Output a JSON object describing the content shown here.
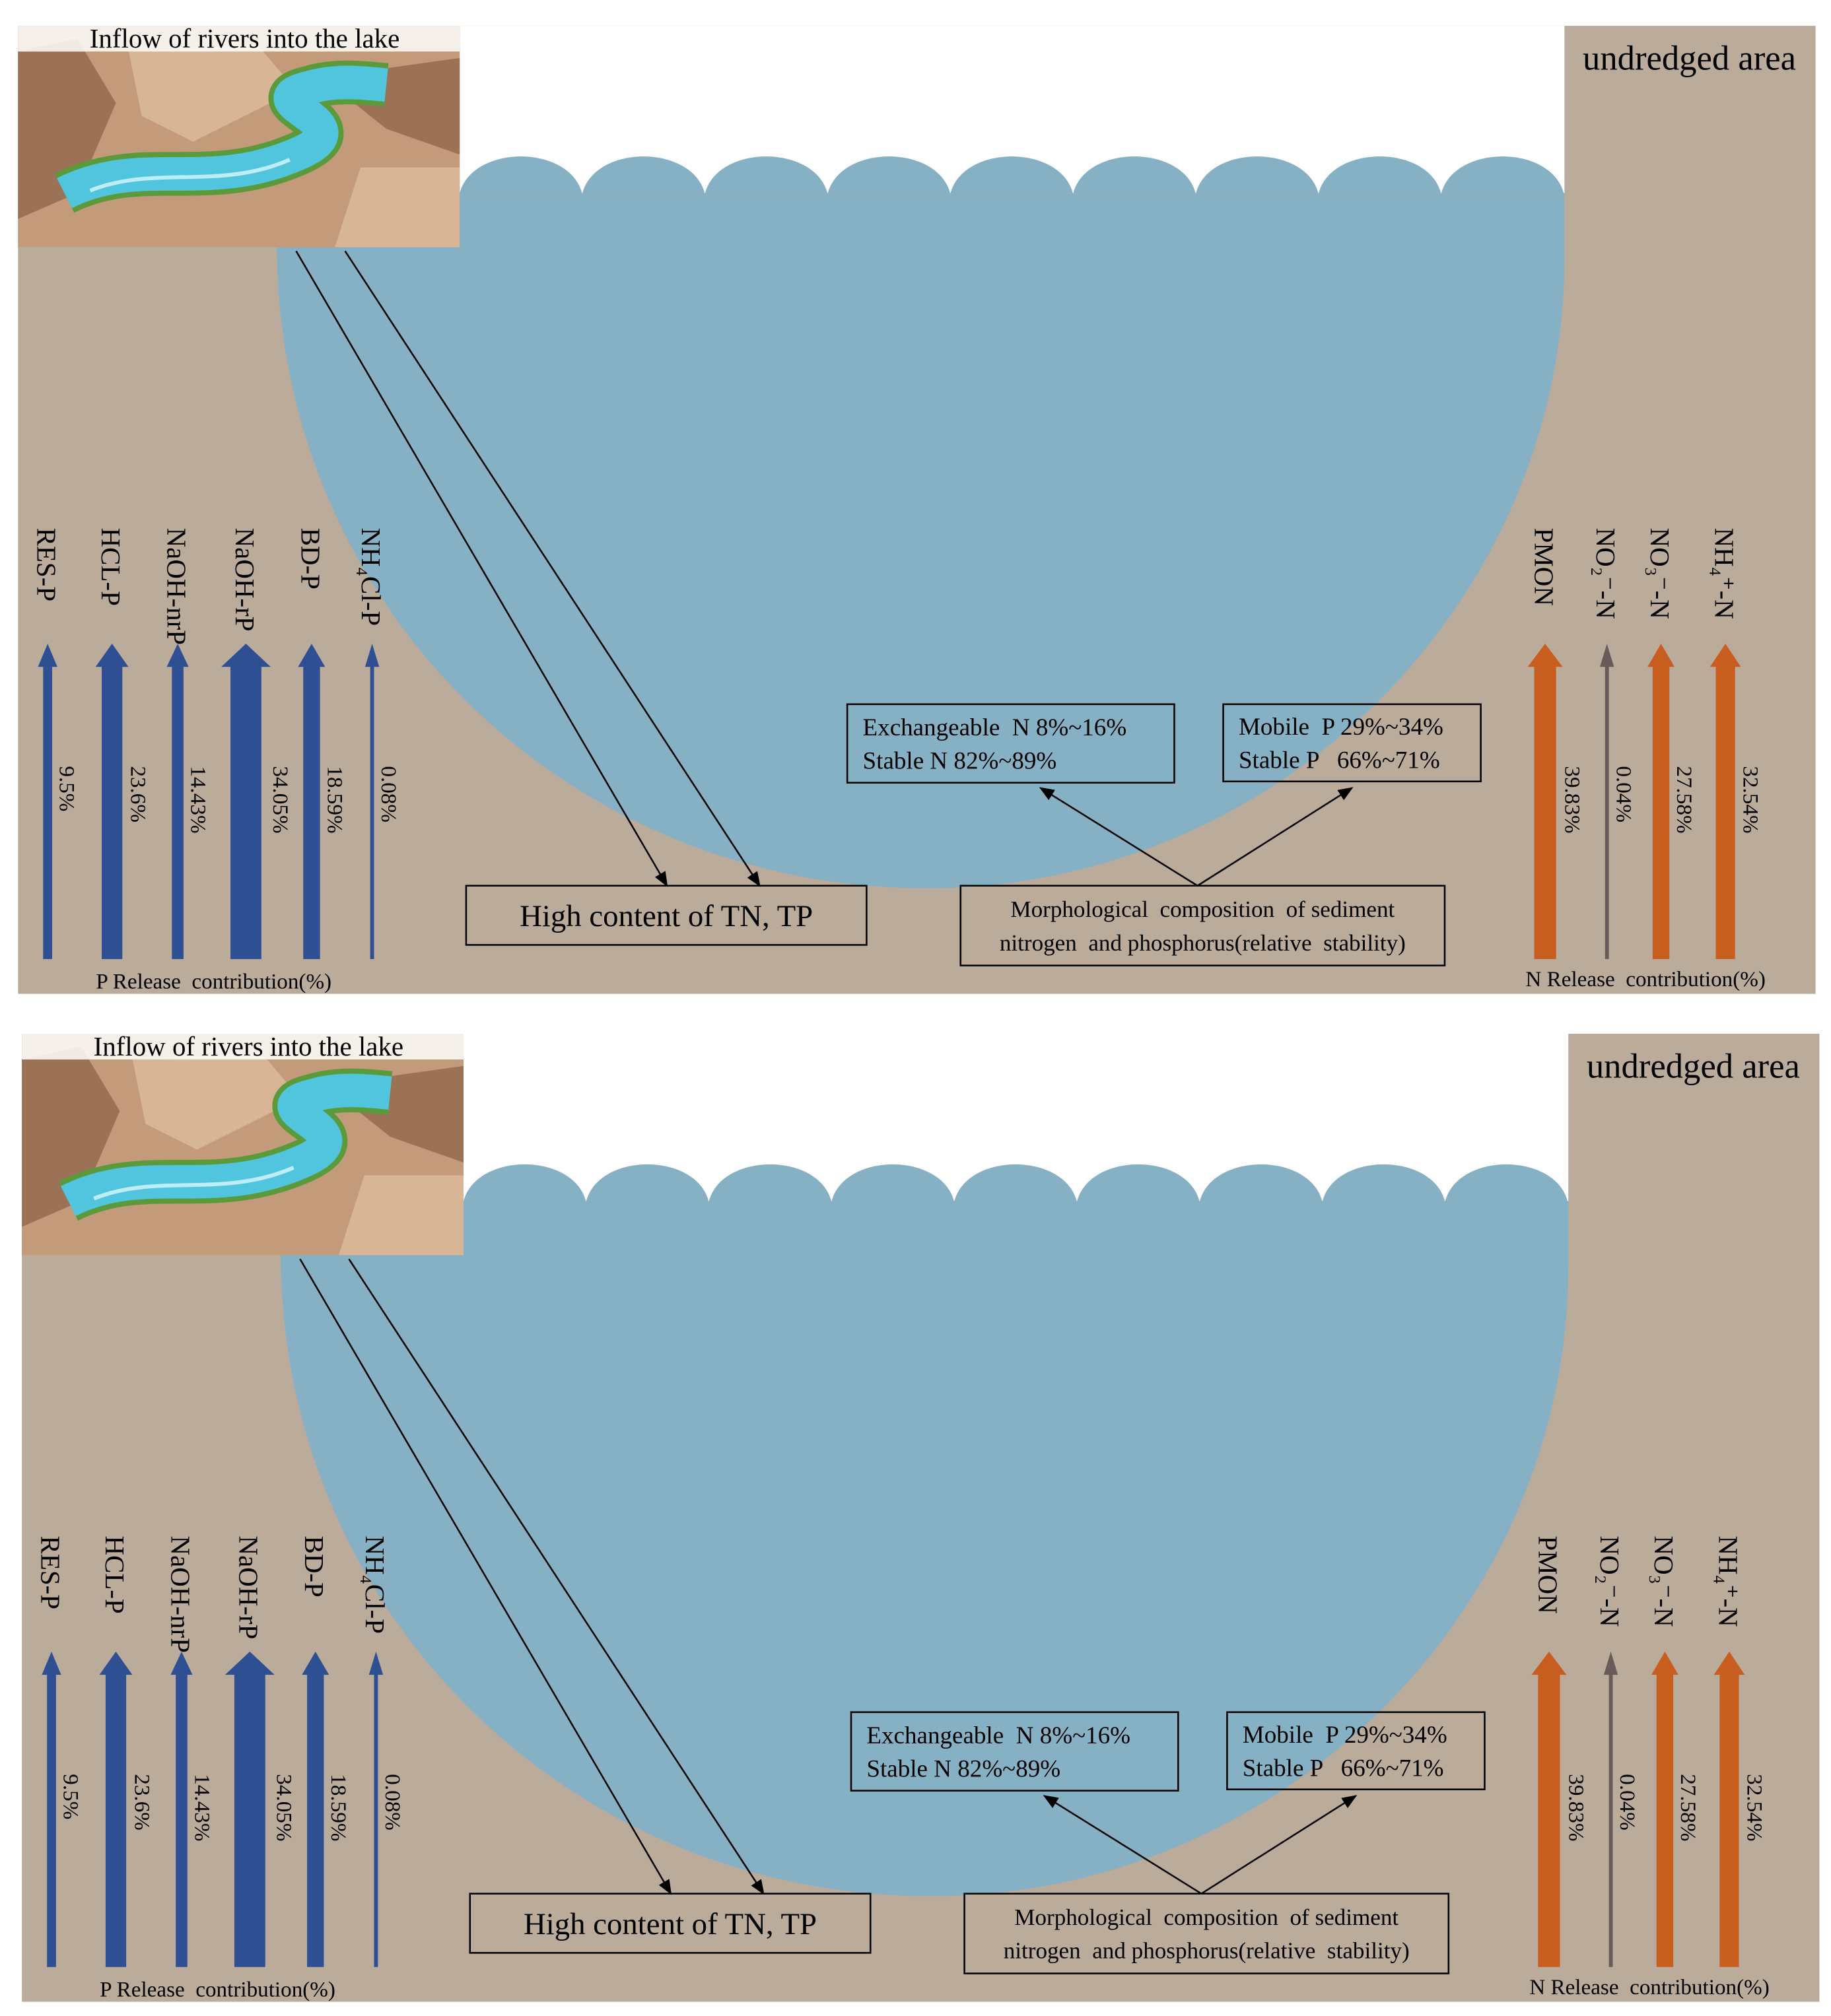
{
  "panels": [
    {
      "river_title": "Inflow of rivers into the lake",
      "area_label": "undredged area",
      "p_release": {
        "caption": "P Release  contribution(%)",
        "items": [
          {
            "name": "RES-P",
            "percent": "9.5%"
          },
          {
            "name": "HCL-P",
            "percent": "23.6%"
          },
          {
            "name": "NaOH-nrP",
            "percent": "14.43%"
          },
          {
            "name": "NaOH-rP",
            "percent": "34.05%"
          },
          {
            "name": "BD-P",
            "percent": "18.59%"
          },
          {
            "name": "NH₄Cl-P",
            "percent": "0.08%"
          }
        ]
      },
      "n_release": {
        "caption": "N Release  contribution(%)",
        "items": [
          {
            "name": "PMON",
            "percent": "39.83%"
          },
          {
            "name": "NO₂⁻-N",
            "percent": "0.04%"
          },
          {
            "name": "NO₃⁻-N",
            "percent": "27.58%"
          },
          {
            "name": "NH₄⁺-N",
            "percent": "32.54%"
          }
        ]
      },
      "tn_tp_box": "High content of TN, TP",
      "morphology_box": [
        "Morphological  composition  of sediment",
        "nitrogen  and phosphorus(relative  stability)"
      ],
      "n_box": [
        "Exchangeable  N 8%~16%",
        "Stable N 82%~89%"
      ],
      "p_box": [
        "Mobile  P 29%~34%",
        "Stable P   66%~71%"
      ]
    },
    {
      "river_title": "Inflow of rivers into the lake",
      "area_label": "undredged area",
      "p_release": {
        "caption": "P Release  contribution(%)",
        "items": [
          {
            "name": "RES-P",
            "percent": "9.5%"
          },
          {
            "name": "HCL-P",
            "percent": "23.6%"
          },
          {
            "name": "NaOH-nrP",
            "percent": "14.43%"
          },
          {
            "name": "NaOH-rP",
            "percent": "34.05%"
          },
          {
            "name": "BD-P",
            "percent": "18.59%"
          },
          {
            "name": "NH₄Cl-P",
            "percent": "0.08%"
          }
        ]
      },
      "n_release": {
        "caption": "N Release  contribution(%)",
        "items": [
          {
            "name": "PMON",
            "percent": "39.83%"
          },
          {
            "name": "NO₂⁻-N",
            "percent": "0.04%"
          },
          {
            "name": "NO₃⁻-N",
            "percent": "27.58%"
          },
          {
            "name": "NH₄⁺-N",
            "percent": "32.54%"
          }
        ]
      },
      "tn_tp_box": "High content of TN, TP",
      "morphology_box": [
        "Morphological  composition  of sediment",
        "nitrogen  and phosphorus(relative  stability)"
      ],
      "n_box": [
        "Exchangeable  N 8%~16%",
        "Stable N 82%~89%"
      ],
      "p_box": [
        "Mobile  P 29%~34%",
        "Stable P   66%~71%"
      ]
    }
  ]
}
